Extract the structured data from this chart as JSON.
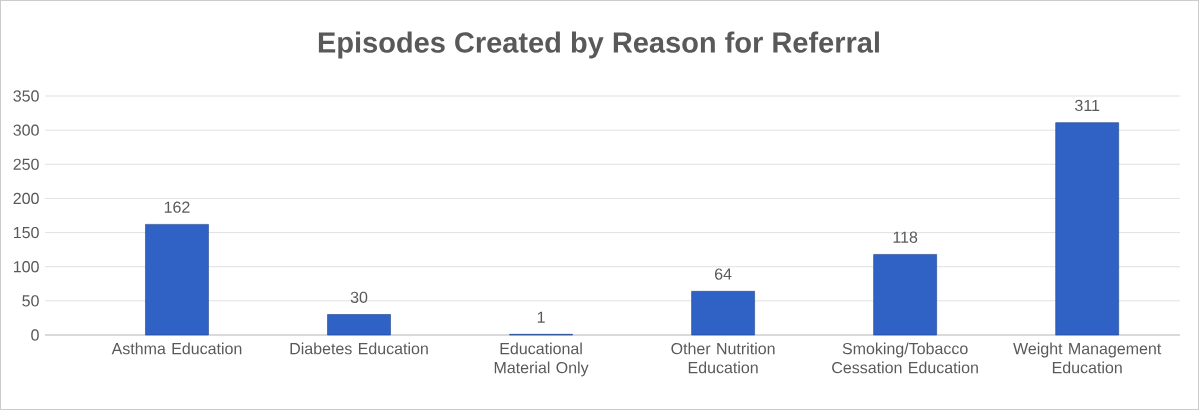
{
  "chart_data": {
    "type": "bar",
    "title": "Episodes Created by Reason for Referral",
    "categories": [
      "Asthma Education",
      "Diabetes Education",
      "Educational Material Only",
      "Other Nutrition Education",
      "Smoking/Tobacco Cessation Education",
      "Weight Management Education"
    ],
    "values": [
      162,
      30,
      1,
      64,
      118,
      311
    ],
    "color": "#2f62c4",
    "ylim": [
      0,
      350
    ],
    "yticks": [
      0,
      50,
      100,
      150,
      200,
      250,
      300,
      350
    ],
    "grid": "y",
    "data_labels": true
  }
}
